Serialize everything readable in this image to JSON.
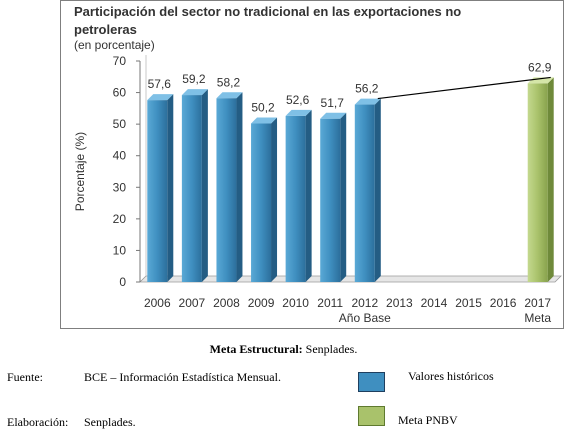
{
  "chart_data": {
    "type": "bar",
    "title": "Participación del sector no tradicional en las exportaciones no petroleras",
    "subtitle": "(en porcentaje)",
    "ylabel": "Porcentaje (%)",
    "ylim": [
      0,
      70
    ],
    "yticks": [
      "0",
      "10",
      "20",
      "30",
      "40",
      "50",
      "60",
      "70"
    ],
    "categories": [
      "2006",
      "2007",
      "2008",
      "2009",
      "2010",
      "2011",
      "2012",
      "2013",
      "2014",
      "2015",
      "2016",
      "2017"
    ],
    "category_sublabels": {
      "2012": "Año Base",
      "2017": "Meta"
    },
    "series": [
      {
        "name": "Valores históricos",
        "values": [
          57.6,
          59.2,
          58.2,
          50.2,
          52.6,
          51.7,
          56.2,
          null,
          null,
          null,
          null,
          null
        ]
      },
      {
        "name": "Meta PNBV",
        "values": [
          null,
          null,
          null,
          null,
          null,
          null,
          null,
          null,
          null,
          null,
          null,
          62.9
        ]
      }
    ],
    "data_labels": [
      "57,6",
      "59,2",
      "58,2",
      "50,2",
      "52,6",
      "51,7",
      "56,2",
      "",
      "",
      "",
      "",
      "62,9"
    ],
    "trend_line": {
      "from": "2012",
      "to": "2017"
    },
    "colors": {
      "historic": "#3f8fc0",
      "target": "#a9c26b"
    }
  },
  "caption": {
    "bold": "Meta Estructural:",
    "rest": " Senplades."
  },
  "source": {
    "label": "Fuente:",
    "text": "BCE – Información Estadística Mensual."
  },
  "elaboration": {
    "label": "Elaboración:",
    "text": "Senplades."
  },
  "legend": {
    "historic": "Valores históricos",
    "target": "Meta PNBV"
  }
}
